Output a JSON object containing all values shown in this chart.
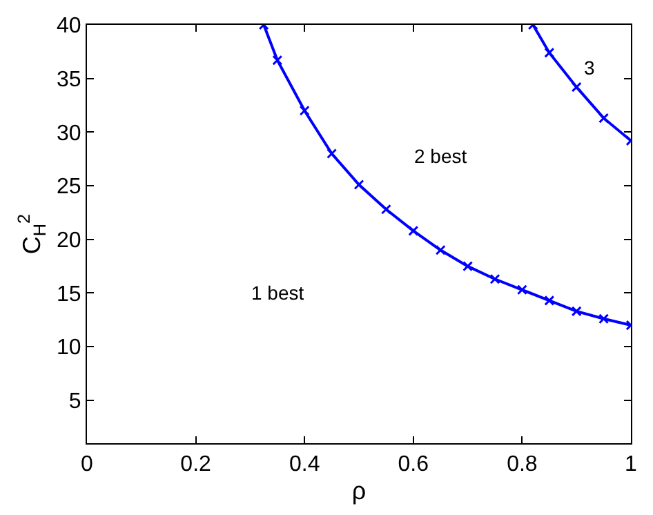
{
  "chart_data": {
    "type": "line",
    "xlabel": "ρ",
    "ylabel": "C$_{H}$$^{2}$",
    "series": [
      {
        "color": "#0000ff",
        "x": [
          0.325,
          0.35,
          0.4,
          0.45,
          0.5,
          0.55,
          0.6,
          0.65,
          0.7,
          0.75,
          0.8,
          0.85,
          0.9,
          0.95,
          1.0
        ],
        "values": [
          40,
          36.7,
          32,
          28,
          25.1,
          22.8,
          20.8,
          19,
          17.5,
          16.3,
          15.3,
          14.3,
          13.3,
          12.6,
          12.0
        ]
      },
      {
        "color": "#0000ff",
        "x": [
          0.82,
          0.85,
          0.9,
          0.95,
          1.0
        ],
        "values": [
          40,
          37.4,
          34.2,
          31.3,
          29.2
        ]
      }
    ],
    "annotations": [
      "1 best",
      "2 best",
      "3"
    ],
    "xlim": [
      0,
      1
    ],
    "ylim": [
      1,
      40
    ],
    "xticks": [
      0,
      0.2,
      0.4,
      0.6,
      0.8,
      1
    ],
    "yticks": [
      5,
      10,
      15,
      20,
      25,
      30,
      35,
      40
    ],
    "marker": "cross",
    "line_style": "solid",
    "legend": false
  }
}
